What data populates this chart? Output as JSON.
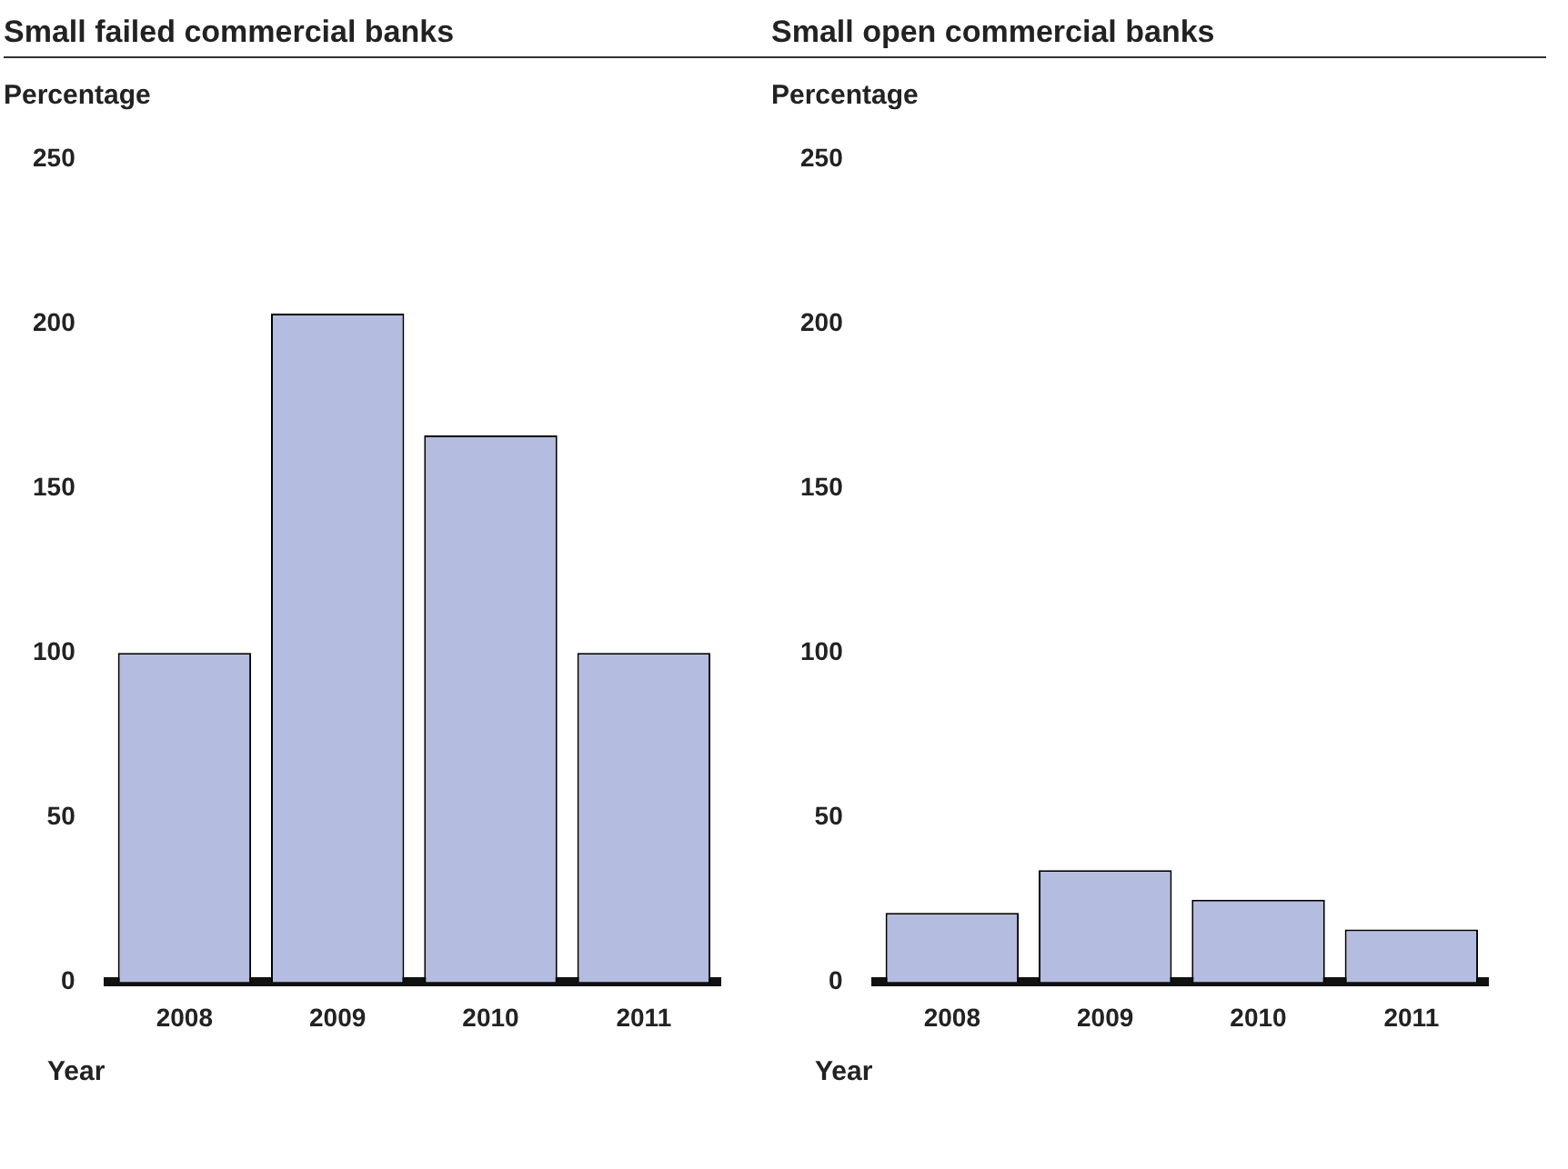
{
  "chart_data": [
    {
      "type": "bar",
      "title": "Small failed commercial banks",
      "ylabel": "Percentage",
      "xlabel": "Year",
      "categories": [
        "2008",
        "2009",
        "2010",
        "2011"
      ],
      "values": [
        100,
        203,
        166,
        100
      ],
      "color": "#b4bcdf",
      "ylim": [
        0,
        250
      ],
      "yticks": [
        0,
        50,
        100,
        150,
        200,
        250
      ]
    },
    {
      "type": "bar",
      "title": "Small open commercial banks",
      "ylabel": "Percentage",
      "xlabel": "Year",
      "categories": [
        "2008",
        "2009",
        "2010",
        "2011"
      ],
      "values": [
        21,
        34,
        25,
        16
      ],
      "color": "#b4bcdf",
      "ylim": [
        0,
        250
      ],
      "yticks": [
        0,
        50,
        100,
        150,
        200,
        250
      ]
    }
  ]
}
